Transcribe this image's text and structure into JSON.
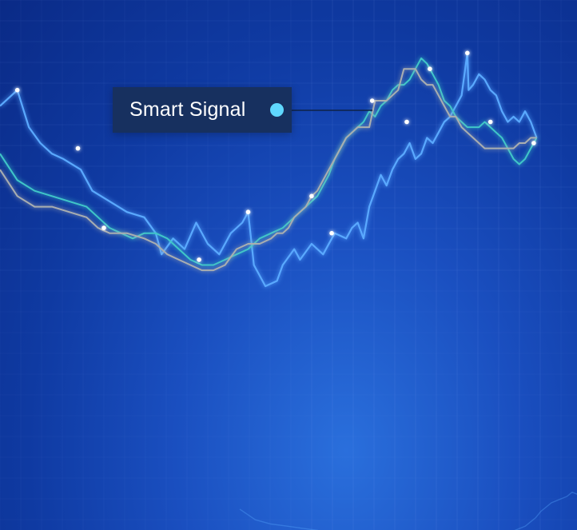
{
  "label": {
    "text": "Smart Signal",
    "dot_color": "#5fd7ff"
  },
  "colors": {
    "primary_line": "#5aa9ff",
    "teal_line": "#3fc6c8",
    "gray_line": "#a9aeb0",
    "marker": "#ffffff",
    "grid": "#8fb3ff"
  },
  "chart_data": {
    "type": "line",
    "title": "",
    "xlabel": "",
    "ylabel": "",
    "xlim": [
      0,
      100
    ],
    "ylim": [
      0,
      100
    ],
    "grid": true,
    "legend": "none",
    "series": [
      {
        "id": "primary",
        "points": [
          [
            0,
            80
          ],
          [
            3,
            83
          ],
          [
            5,
            76
          ],
          [
            7,
            73
          ],
          [
            9,
            71
          ],
          [
            11,
            70
          ],
          [
            14,
            68
          ],
          [
            16,
            64
          ],
          [
            19,
            62
          ],
          [
            22,
            60
          ],
          [
            25,
            59
          ],
          [
            27,
            56
          ],
          [
            28,
            52
          ],
          [
            30,
            55
          ],
          [
            32,
            53
          ],
          [
            34,
            58
          ],
          [
            36,
            54
          ],
          [
            38,
            52
          ],
          [
            40,
            56
          ],
          [
            42,
            58
          ],
          [
            43,
            60
          ],
          [
            44,
            50
          ],
          [
            46,
            46
          ],
          [
            48,
            47
          ],
          [
            49,
            50
          ],
          [
            51,
            53
          ],
          [
            52,
            51
          ],
          [
            54,
            54
          ],
          [
            56,
            52
          ],
          [
            58,
            56
          ],
          [
            60,
            55
          ],
          [
            61,
            57
          ],
          [
            62,
            58
          ],
          [
            63,
            55
          ],
          [
            64,
            61
          ],
          [
            65,
            64
          ],
          [
            66,
            67
          ],
          [
            67,
            65
          ],
          [
            68,
            68
          ],
          [
            69,
            70
          ],
          [
            70,
            71
          ],
          [
            71,
            73
          ],
          [
            72,
            70
          ],
          [
            73,
            71
          ],
          [
            74,
            74
          ],
          [
            75,
            73
          ],
          [
            76,
            75
          ],
          [
            77,
            77
          ],
          [
            78,
            78
          ],
          [
            79,
            80
          ],
          [
            80,
            82
          ],
          [
            81,
            90
          ],
          [
            81.2,
            83
          ],
          [
            82,
            84
          ],
          [
            83,
            86
          ],
          [
            84,
            85
          ],
          [
            85,
            83
          ],
          [
            86,
            82
          ],
          [
            87,
            79
          ],
          [
            88,
            77
          ],
          [
            89,
            78
          ],
          [
            90,
            77
          ],
          [
            91,
            79
          ],
          [
            92,
            77
          ],
          [
            93,
            74
          ]
        ],
        "markers": [
          [
            3,
            83
          ],
          [
            13.5,
            72
          ],
          [
            43,
            60
          ],
          [
            57.5,
            56
          ],
          [
            70.5,
            77
          ],
          [
            81,
            90
          ]
        ]
      },
      {
        "id": "teal",
        "points": [
          [
            0,
            71
          ],
          [
            3,
            66
          ],
          [
            6,
            64
          ],
          [
            9,
            63
          ],
          [
            12,
            62
          ],
          [
            15,
            61
          ],
          [
            17,
            59
          ],
          [
            19,
            57
          ],
          [
            21,
            56
          ],
          [
            23,
            55
          ],
          [
            25,
            56
          ],
          [
            27,
            56
          ],
          [
            29,
            55
          ],
          [
            30,
            54
          ],
          [
            31,
            53
          ],
          [
            33,
            51
          ],
          [
            35,
            50
          ],
          [
            37,
            50
          ],
          [
            39,
            51
          ],
          [
            41,
            52
          ],
          [
            43,
            53
          ],
          [
            45,
            55
          ],
          [
            47,
            56
          ],
          [
            49,
            57
          ],
          [
            51,
            59
          ],
          [
            53,
            61
          ],
          [
            55,
            63
          ],
          [
            57,
            67
          ],
          [
            58,
            70
          ],
          [
            59,
            72
          ],
          [
            60,
            74
          ],
          [
            61,
            75
          ],
          [
            62,
            76
          ],
          [
            63,
            77
          ],
          [
            64,
            79
          ],
          [
            65,
            78
          ],
          [
            66,
            80
          ],
          [
            67,
            81
          ],
          [
            68,
            83
          ],
          [
            69,
            84
          ],
          [
            70,
            84
          ],
          [
            71,
            85
          ],
          [
            72,
            87
          ],
          [
            73,
            89
          ],
          [
            74,
            88
          ],
          [
            75,
            86
          ],
          [
            76,
            84
          ],
          [
            77,
            81
          ],
          [
            78,
            80
          ],
          [
            79,
            78
          ],
          [
            80,
            77
          ],
          [
            81,
            76
          ],
          [
            82,
            76
          ],
          [
            83,
            76
          ],
          [
            84,
            77
          ],
          [
            85,
            76
          ],
          [
            86,
            75
          ],
          [
            87,
            74
          ],
          [
            88,
            72
          ],
          [
            89,
            70
          ],
          [
            90,
            69
          ],
          [
            91,
            70
          ],
          [
            92,
            72
          ],
          [
            93,
            74
          ]
        ],
        "markers": [
          [
            18,
            57
          ],
          [
            74.5,
            87
          ],
          [
            85,
            77
          ],
          [
            92.5,
            73
          ]
        ]
      },
      {
        "id": "gray",
        "points": [
          [
            0,
            68
          ],
          [
            3,
            63
          ],
          [
            6,
            61
          ],
          [
            9,
            61
          ],
          [
            12,
            60
          ],
          [
            15,
            59
          ],
          [
            17,
            57
          ],
          [
            19,
            56
          ],
          [
            22,
            56
          ],
          [
            25,
            55
          ],
          [
            27,
            54
          ],
          [
            29,
            52
          ],
          [
            31,
            51
          ],
          [
            33,
            50
          ],
          [
            35,
            49
          ],
          [
            37,
            49
          ],
          [
            39,
            50
          ],
          [
            41,
            53
          ],
          [
            43,
            54
          ],
          [
            45,
            54
          ],
          [
            47,
            55
          ],
          [
            48,
            56
          ],
          [
            49,
            56
          ],
          [
            50,
            57
          ],
          [
            51,
            59
          ],
          [
            52,
            60
          ],
          [
            53,
            61
          ],
          [
            54,
            63
          ],
          [
            55,
            64
          ],
          [
            56,
            66
          ],
          [
            57,
            68
          ],
          [
            58,
            70
          ],
          [
            59,
            72
          ],
          [
            60,
            74
          ],
          [
            61,
            75
          ],
          [
            62,
            76
          ],
          [
            63,
            76
          ],
          [
            64,
            76
          ],
          [
            65,
            81
          ],
          [
            66,
            81
          ],
          [
            67,
            81
          ],
          [
            68,
            82
          ],
          [
            69,
            83
          ],
          [
            70,
            87
          ],
          [
            71,
            87
          ],
          [
            72,
            87
          ],
          [
            73,
            85
          ],
          [
            74,
            84
          ],
          [
            75,
            84
          ],
          [
            76,
            82
          ],
          [
            77,
            80
          ],
          [
            78,
            78
          ],
          [
            79,
            78
          ],
          [
            80,
            76
          ],
          [
            81,
            75
          ],
          [
            82,
            74
          ],
          [
            83,
            73
          ],
          [
            84,
            72
          ],
          [
            85,
            72
          ],
          [
            86,
            72
          ],
          [
            87,
            72
          ],
          [
            88,
            72
          ],
          [
            89,
            72
          ],
          [
            90,
            73
          ],
          [
            91,
            73
          ],
          [
            92,
            74
          ],
          [
            93,
            74
          ]
        ],
        "markers": [
          [
            34.5,
            51
          ],
          [
            54,
            63
          ],
          [
            64.5,
            81
          ]
        ]
      }
    ]
  }
}
